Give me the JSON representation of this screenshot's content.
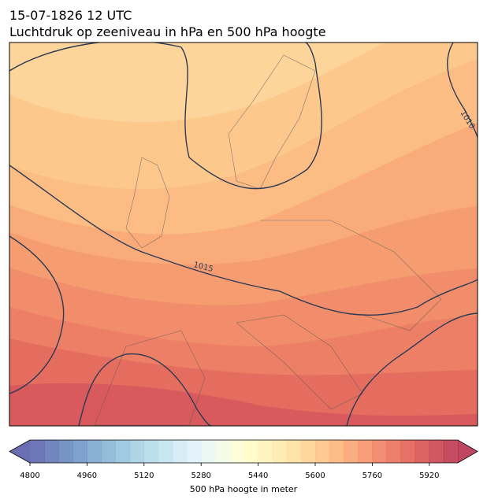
{
  "title": "15-07-1826 12 UTC",
  "subtitle": "Luchtdruk op zeeniveau in hPa en 500 hPa hoogte",
  "map": {
    "contour_labels": [
      1015,
      1010
    ]
  },
  "colorbar": {
    "label": "500 hPa hoogte in meter",
    "range": [
      4800,
      6000
    ],
    "step": 40,
    "ticks": [
      4800,
      4960,
      5120,
      5280,
      5440,
      5600,
      5760,
      5920
    ],
    "colormap": [
      "#313695",
      "#4575b4",
      "#74add1",
      "#abd9e9",
      "#e0f3f8",
      "#ffffbf",
      "#fee090",
      "#fdae61",
      "#f46d43",
      "#d73027",
      "#a50026"
    ]
  }
}
